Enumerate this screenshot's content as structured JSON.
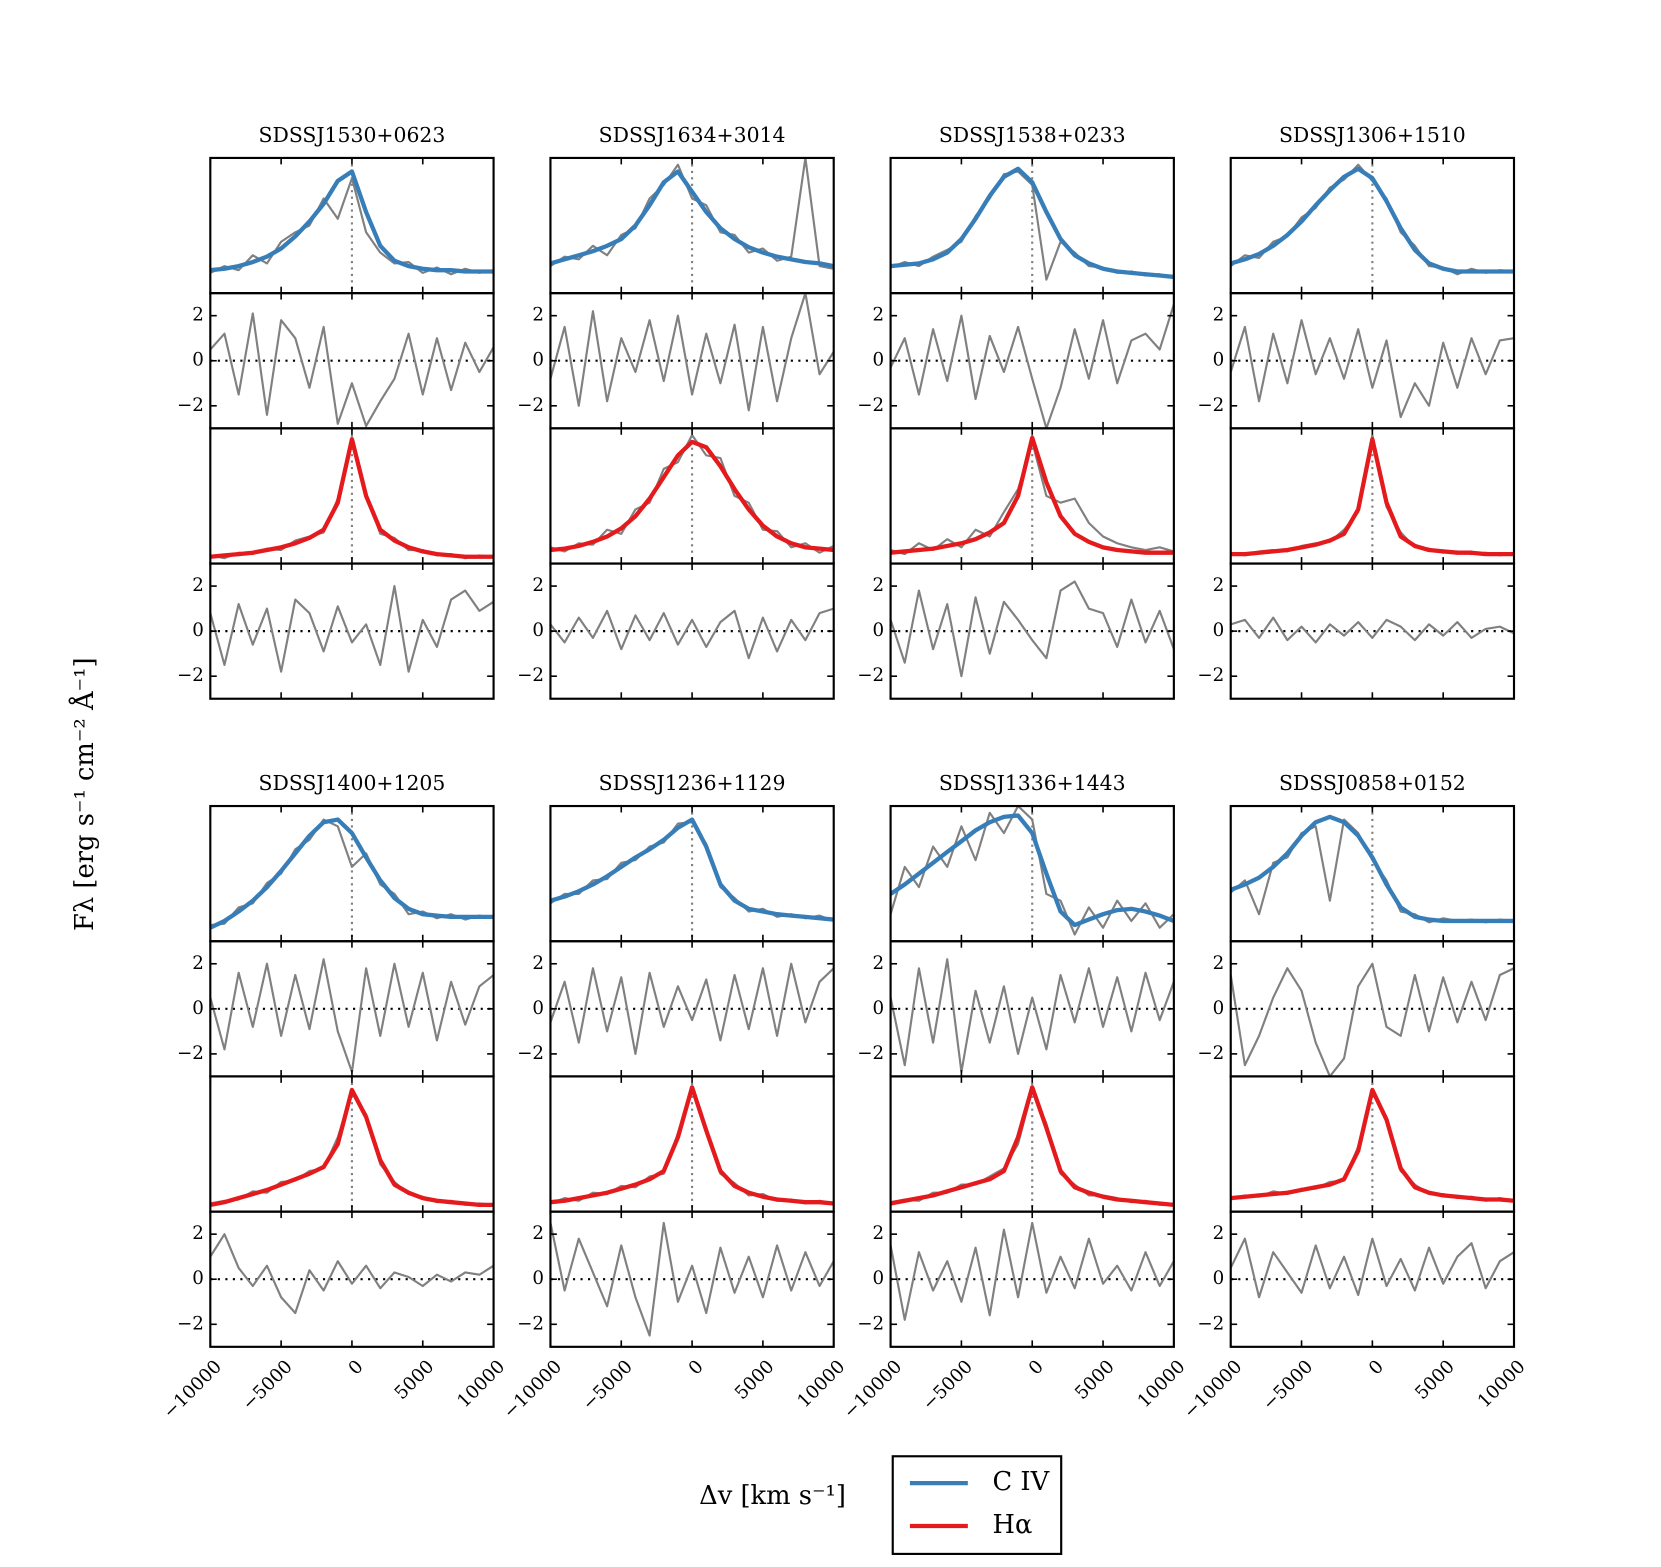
{
  "chart_data": {
    "type": "line",
    "ylabel": "Fλ [erg s⁻¹ cm⁻² Å⁻¹]",
    "xlabel": "Δv [km s⁻¹]",
    "series": [
      {
        "name": "C IV",
        "color": "#377eb8"
      },
      {
        "name": "Hα",
        "color": "#e41a1c"
      }
    ],
    "data_color": "#808080",
    "xlim": [
      -10000,
      10000
    ],
    "xticks": [
      {
        "value": -10000,
        "label": "−10000"
      },
      {
        "value": -5000,
        "label": "−5000"
      },
      0,
      5000,
      10000
    ],
    "flux_ylim": [
      0,
      1
    ],
    "residual_ylim": [
      -3,
      3
    ],
    "residual_yticks": [
      {
        "value": -2,
        "label": "−2"
      },
      0,
      2
    ],
    "reference_lines": {
      "x": 0,
      "residual_y": 0
    },
    "x": [
      -10000,
      -9000,
      -8000,
      -7000,
      -6000,
      -5000,
      -4000,
      -3000,
      -2000,
      -1000,
      0,
      1000,
      2000,
      3000,
      4000,
      5000,
      6000,
      7000,
      8000,
      9000,
      10000
    ],
    "objects": [
      {
        "title": "SDSSJ1530+0623",
        "civ_fit": [
          0.17,
          0.18,
          0.2,
          0.23,
          0.27,
          0.33,
          0.42,
          0.53,
          0.66,
          0.83,
          0.9,
          0.6,
          0.35,
          0.24,
          0.2,
          0.18,
          0.17,
          0.17,
          0.16,
          0.16,
          0.16
        ],
        "civ_data": [
          0.15,
          0.2,
          0.17,
          0.28,
          0.22,
          0.38,
          0.45,
          0.5,
          0.7,
          0.55,
          0.85,
          0.45,
          0.3,
          0.22,
          0.23,
          0.15,
          0.19,
          0.14,
          0.18,
          0.15,
          0.17
        ],
        "civ_resid": [
          0.5,
          1.2,
          -1.5,
          2.1,
          -2.4,
          1.8,
          1.0,
          -1.2,
          1.5,
          -2.8,
          -1.0,
          -2.9,
          -1.8,
          -0.8,
          1.2,
          -1.5,
          1.0,
          -1.3,
          0.8,
          -0.5,
          0.6
        ],
        "ha_fit": [
          0.05,
          0.06,
          0.07,
          0.08,
          0.1,
          0.12,
          0.15,
          0.19,
          0.25,
          0.45,
          0.92,
          0.5,
          0.25,
          0.17,
          0.12,
          0.09,
          0.07,
          0.06,
          0.05,
          0.05,
          0.05
        ],
        "ha_data": [
          0.06,
          0.04,
          0.08,
          0.07,
          0.11,
          0.1,
          0.17,
          0.2,
          0.23,
          0.48,
          0.9,
          0.52,
          0.22,
          0.19,
          0.1,
          0.1,
          0.06,
          0.07,
          0.04,
          0.06,
          0.05
        ],
        "ha_resid": [
          0.8,
          -1.5,
          1.2,
          -0.6,
          1.0,
          -1.8,
          1.4,
          0.8,
          -0.9,
          1.1,
          -0.5,
          0.3,
          -1.5,
          2.0,
          -1.8,
          0.5,
          -0.7,
          1.4,
          1.8,
          0.9,
          1.3
        ]
      },
      {
        "title": "SDSSJ1634+3014",
        "civ_fit": [
          0.22,
          0.25,
          0.28,
          0.31,
          0.35,
          0.4,
          0.5,
          0.65,
          0.82,
          0.9,
          0.75,
          0.6,
          0.48,
          0.4,
          0.34,
          0.3,
          0.27,
          0.25,
          0.23,
          0.22,
          0.2
        ],
        "civ_data": [
          0.2,
          0.27,
          0.25,
          0.35,
          0.28,
          0.43,
          0.48,
          0.7,
          0.8,
          0.95,
          0.7,
          0.65,
          0.45,
          0.43,
          0.3,
          0.33,
          0.24,
          0.27,
          1.0,
          0.2,
          0.18
        ],
        "civ_resid": [
          -0.8,
          1.5,
          -2.0,
          2.2,
          -1.8,
          1.0,
          -0.5,
          1.8,
          -0.9,
          2.0,
          -1.5,
          1.2,
          -1.0,
          1.6,
          -2.2,
          1.5,
          -1.8,
          1.0,
          3.0,
          -0.6,
          0.4
        ],
        "ha_fit": [
          0.1,
          0.11,
          0.13,
          0.16,
          0.2,
          0.26,
          0.35,
          0.48,
          0.64,
          0.8,
          0.9,
          0.86,
          0.72,
          0.55,
          0.4,
          0.28,
          0.2,
          0.15,
          0.12,
          0.11,
          0.1
        ],
        "ha_data": [
          0.12,
          0.09,
          0.15,
          0.14,
          0.25,
          0.22,
          0.4,
          0.45,
          0.7,
          0.75,
          0.95,
          0.8,
          0.78,
          0.5,
          0.45,
          0.25,
          0.24,
          0.12,
          0.15,
          0.08,
          0.13
        ],
        "ha_resid": [
          0.3,
          -0.5,
          0.6,
          -0.3,
          0.9,
          -0.8,
          0.7,
          -0.4,
          0.8,
          -0.6,
          0.5,
          -0.7,
          0.4,
          0.9,
          -1.2,
          0.6,
          -0.9,
          0.5,
          -0.4,
          0.8,
          1.0
        ]
      },
      {
        "title": "SDSSJ1538+0233",
        "civ_fit": [
          0.2,
          0.21,
          0.22,
          0.25,
          0.3,
          0.4,
          0.55,
          0.72,
          0.86,
          0.92,
          0.82,
          0.6,
          0.4,
          0.28,
          0.22,
          0.18,
          0.16,
          0.15,
          0.14,
          0.13,
          0.12
        ],
        "civ_data": [
          0.19,
          0.23,
          0.2,
          0.27,
          0.32,
          0.38,
          0.57,
          0.7,
          0.88,
          0.9,
          0.8,
          0.1,
          0.38,
          0.3,
          0.2,
          0.19,
          0.15,
          0.16,
          0.13,
          0.14,
          0.12
        ],
        "civ_resid": [
          -0.3,
          1.0,
          -1.5,
          1.4,
          -0.9,
          2.0,
          -1.7,
          1.1,
          -0.5,
          1.5,
          -0.8,
          -3.0,
          -1.2,
          1.4,
          -0.8,
          1.8,
          -1.0,
          0.9,
          1.2,
          0.5,
          2.5
        ],
        "ha_fit": [
          0.08,
          0.09,
          0.1,
          0.11,
          0.13,
          0.15,
          0.18,
          0.23,
          0.3,
          0.5,
          0.93,
          0.6,
          0.35,
          0.22,
          0.16,
          0.12,
          0.1,
          0.09,
          0.08,
          0.08,
          0.08
        ],
        "ha_data": [
          0.1,
          0.07,
          0.15,
          0.1,
          0.18,
          0.12,
          0.25,
          0.2,
          0.38,
          0.55,
          0.9,
          0.5,
          0.45,
          0.48,
          0.3,
          0.2,
          0.15,
          0.12,
          0.1,
          0.12,
          0.09
        ],
        "ha_resid": [
          0.5,
          -1.4,
          1.8,
          -0.8,
          1.2,
          -2.0,
          1.5,
          -1.0,
          1.3,
          0.5,
          -0.4,
          -1.2,
          1.8,
          2.2,
          1.0,
          0.8,
          -0.7,
          1.4,
          -0.5,
          0.9,
          -0.8
        ]
      },
      {
        "title": "SDSSJ1306+1510",
        "civ_fit": [
          0.22,
          0.25,
          0.29,
          0.35,
          0.43,
          0.53,
          0.65,
          0.76,
          0.86,
          0.92,
          0.85,
          0.68,
          0.48,
          0.32,
          0.22,
          0.18,
          0.16,
          0.16,
          0.16,
          0.16,
          0.16
        ],
        "civ_data": [
          0.2,
          0.28,
          0.26,
          0.38,
          0.42,
          0.56,
          0.63,
          0.78,
          0.84,
          0.95,
          0.83,
          0.7,
          0.45,
          0.35,
          0.2,
          0.19,
          0.14,
          0.18,
          0.15,
          0.17,
          0.16
        ],
        "civ_resid": [
          -0.5,
          1.5,
          -1.8,
          1.2,
          -1.0,
          1.8,
          -0.6,
          1.0,
          -0.8,
          1.4,
          -1.2,
          0.9,
          -2.5,
          -1.0,
          -2.0,
          0.8,
          -1.2,
          1.0,
          -0.6,
          0.9,
          1.0
        ],
        "ha_fit": [
          0.07,
          0.07,
          0.08,
          0.09,
          0.1,
          0.12,
          0.14,
          0.17,
          0.22,
          0.4,
          0.92,
          0.45,
          0.2,
          0.13,
          0.1,
          0.09,
          0.08,
          0.08,
          0.07,
          0.07,
          0.07
        ],
        "ha_data": [
          0.08,
          0.06,
          0.09,
          0.1,
          0.09,
          0.13,
          0.15,
          0.16,
          0.25,
          0.38,
          0.95,
          0.42,
          0.23,
          0.12,
          0.11,
          0.08,
          0.09,
          0.07,
          0.08,
          0.06,
          0.08
        ],
        "ha_resid": [
          0.3,
          0.5,
          -0.3,
          0.6,
          -0.4,
          0.2,
          -0.5,
          0.3,
          -0.2,
          0.4,
          -0.3,
          0.5,
          0.2,
          -0.4,
          0.3,
          -0.2,
          0.4,
          -0.3,
          0.1,
          0.2,
          -0.1
        ]
      },
      {
        "title": "SDSSJ1400+1205",
        "civ_fit": [
          0.1,
          0.15,
          0.22,
          0.3,
          0.4,
          0.52,
          0.65,
          0.78,
          0.88,
          0.9,
          0.8,
          0.62,
          0.45,
          0.32,
          0.24,
          0.2,
          0.19,
          0.18,
          0.18,
          0.18,
          0.18
        ],
        "civ_data": [
          0.12,
          0.13,
          0.25,
          0.28,
          0.43,
          0.5,
          0.68,
          0.75,
          0.9,
          0.85,
          0.55,
          0.65,
          0.42,
          0.35,
          0.2,
          0.22,
          0.17,
          0.2,
          0.16,
          0.19,
          0.17
        ],
        "civ_resid": [
          0.5,
          -1.8,
          1.6,
          -0.8,
          2.0,
          -1.2,
          1.5,
          -0.9,
          2.2,
          -1.0,
          -2.8,
          1.8,
          -1.2,
          2.0,
          -0.8,
          1.6,
          -1.4,
          1.2,
          -0.7,
          1.0,
          1.5
        ],
        "ha_fit": [
          0.05,
          0.07,
          0.1,
          0.13,
          0.16,
          0.2,
          0.24,
          0.28,
          0.33,
          0.5,
          0.9,
          0.7,
          0.38,
          0.2,
          0.14,
          0.1,
          0.08,
          0.07,
          0.06,
          0.05,
          0.05
        ],
        "ha_data": [
          0.06,
          0.08,
          0.09,
          0.15,
          0.14,
          0.22,
          0.23,
          0.3,
          0.32,
          0.55,
          0.88,
          0.72,
          0.35,
          0.22,
          0.13,
          0.11,
          0.07,
          0.08,
          0.05,
          0.06,
          0.05
        ],
        "ha_resid": [
          1.0,
          2.0,
          0.5,
          -0.3,
          0.6,
          -0.8,
          -1.5,
          0.4,
          -0.5,
          0.8,
          -0.2,
          0.6,
          -0.4,
          0.3,
          0.1,
          -0.3,
          0.2,
          -0.1,
          0.3,
          0.2,
          0.6
        ]
      },
      {
        "title": "SDSSJ1236+1129",
        "civ_fit": [
          0.3,
          0.33,
          0.37,
          0.42,
          0.48,
          0.55,
          0.62,
          0.68,
          0.75,
          0.84,
          0.9,
          0.7,
          0.42,
          0.3,
          0.24,
          0.22,
          0.2,
          0.19,
          0.18,
          0.17,
          0.16
        ],
        "civ_data": [
          0.28,
          0.35,
          0.35,
          0.45,
          0.46,
          0.58,
          0.6,
          0.7,
          0.73,
          0.87,
          0.88,
          0.72,
          0.4,
          0.32,
          0.22,
          0.24,
          0.18,
          0.2,
          0.17,
          0.19,
          0.15
        ],
        "civ_resid": [
          -0.6,
          1.2,
          -1.5,
          1.8,
          -1.0,
          1.4,
          -2.0,
          1.6,
          -0.8,
          1.0,
          -0.5,
          1.3,
          -1.4,
          1.5,
          -0.9,
          1.8,
          -1.2,
          2.0,
          -0.6,
          1.2,
          1.8
        ],
        "ha_fit": [
          0.07,
          0.08,
          0.1,
          0.12,
          0.14,
          0.17,
          0.2,
          0.24,
          0.3,
          0.55,
          0.92,
          0.6,
          0.3,
          0.19,
          0.14,
          0.11,
          0.09,
          0.08,
          0.07,
          0.07,
          0.06
        ],
        "ha_data": [
          0.06,
          0.1,
          0.08,
          0.14,
          0.13,
          0.19,
          0.18,
          0.26,
          0.28,
          0.58,
          0.9,
          0.62,
          0.28,
          0.21,
          0.12,
          0.13,
          0.08,
          0.09,
          0.06,
          0.08,
          0.06
        ],
        "ha_resid": [
          2.5,
          -0.5,
          1.8,
          0.3,
          -1.2,
          1.5,
          -0.8,
          -2.5,
          2.5,
          -1.0,
          0.6,
          -1.5,
          1.4,
          -0.6,
          1.0,
          -0.8,
          1.5,
          -0.5,
          1.2,
          -0.3,
          0.8
        ]
      },
      {
        "title": "SDSSJ1336+1443",
        "civ_fit": [
          0.35,
          0.42,
          0.5,
          0.58,
          0.66,
          0.74,
          0.82,
          0.88,
          0.92,
          0.93,
          0.8,
          0.5,
          0.22,
          0.12,
          0.16,
          0.2,
          0.23,
          0.24,
          0.22,
          0.19,
          0.15
        ],
        "civ_data": [
          0.2,
          0.55,
          0.4,
          0.7,
          0.55,
          0.85,
          0.6,
          0.95,
          0.8,
          1.0,
          0.9,
          0.35,
          0.3,
          0.05,
          0.25,
          0.1,
          0.3,
          0.15,
          0.28,
          0.1,
          0.2
        ],
        "civ_resid": [
          0.5,
          -2.5,
          1.8,
          -1.5,
          2.2,
          -2.8,
          0.8,
          -1.5,
          1.0,
          -2.0,
          0.5,
          -1.8,
          1.5,
          -0.6,
          1.8,
          -0.8,
          1.4,
          -1.0,
          1.6,
          -0.5,
          1.2
        ],
        "ha_fit": [
          0.06,
          0.08,
          0.1,
          0.12,
          0.15,
          0.18,
          0.21,
          0.24,
          0.3,
          0.55,
          0.92,
          0.62,
          0.3,
          0.18,
          0.14,
          0.11,
          0.09,
          0.08,
          0.07,
          0.06,
          0.05
        ],
        "ha_data": [
          0.07,
          0.09,
          0.08,
          0.14,
          0.14,
          0.2,
          0.2,
          0.26,
          0.32,
          0.5,
          0.9,
          0.65,
          0.28,
          0.2,
          0.12,
          0.12,
          0.1,
          0.07,
          0.08,
          0.05,
          0.06
        ],
        "ha_resid": [
          1.5,
          -1.8,
          1.2,
          -0.5,
          0.8,
          -1.0,
          1.4,
          -1.6,
          2.2,
          -0.8,
          2.5,
          -0.6,
          1.0,
          -0.4,
          1.8,
          -0.2,
          0.6,
          -0.5,
          1.2,
          -0.3,
          0.8
        ]
      },
      {
        "title": "SDSSJ0858+0152",
        "civ_fit": [
          0.38,
          0.42,
          0.47,
          0.55,
          0.65,
          0.78,
          0.88,
          0.92,
          0.88,
          0.78,
          0.62,
          0.42,
          0.25,
          0.18,
          0.16,
          0.15,
          0.15,
          0.15,
          0.15,
          0.15,
          0.15
        ],
        "civ_data": [
          0.36,
          0.45,
          0.2,
          0.58,
          0.62,
          0.8,
          0.85,
          0.3,
          0.9,
          0.8,
          0.6,
          0.45,
          0.22,
          0.2,
          0.14,
          0.17,
          0.15,
          0.16,
          0.14,
          0.16,
          0.15
        ],
        "civ_resid": [
          1.5,
          -2.5,
          -1.2,
          0.5,
          1.8,
          0.8,
          -1.5,
          -3.0,
          -2.2,
          1.0,
          2.0,
          -0.8,
          -1.2,
          1.5,
          -1.0,
          1.4,
          -0.6,
          1.2,
          -0.5,
          1.5,
          1.8
        ],
        "ha_fit": [
          0.1,
          0.11,
          0.12,
          0.13,
          0.14,
          0.16,
          0.18,
          0.2,
          0.24,
          0.45,
          0.9,
          0.68,
          0.32,
          0.18,
          0.14,
          0.12,
          0.11,
          0.1,
          0.09,
          0.09,
          0.08
        ],
        "ha_data": [
          0.09,
          0.12,
          0.11,
          0.15,
          0.13,
          0.17,
          0.17,
          0.22,
          0.23,
          0.48,
          0.88,
          0.7,
          0.3,
          0.2,
          0.13,
          0.13,
          0.1,
          0.11,
          0.08,
          0.1,
          0.08
        ],
        "ha_resid": [
          0.5,
          1.8,
          -0.8,
          1.2,
          0.3,
          -0.6,
          1.5,
          -0.4,
          1.0,
          -0.7,
          1.8,
          -0.3,
          0.9,
          -0.5,
          1.4,
          -0.2,
          1.0,
          1.6,
          -0.4,
          0.8,
          1.2
        ]
      }
    ]
  }
}
